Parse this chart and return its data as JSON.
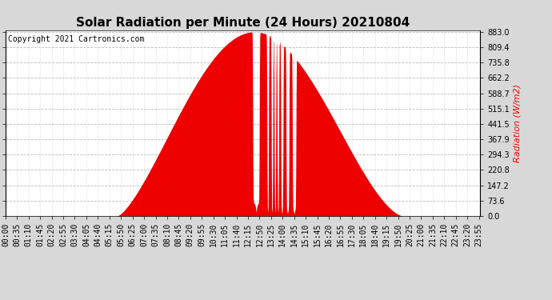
{
  "title": "Solar Radiation per Minute (24 Hours) 20210804",
  "ylabel": "Radiation (W/m2)",
  "copyright": "Copyright 2021 Cartronics.com",
  "ymax": 883.0,
  "yticks": [
    0.0,
    73.6,
    147.2,
    220.8,
    294.3,
    367.9,
    441.5,
    515.1,
    588.7,
    662.2,
    735.8,
    809.4,
    883.0
  ],
  "fill_color": "#ee0000",
  "background_color": "#d8d8d8",
  "plot_bg_color": "#ffffff",
  "grid_color": "#aaaaaa",
  "dashed_line_color": "#cc0000",
  "title_fontsize": 11,
  "axis_fontsize": 7,
  "ylabel_fontsize": 8,
  "copyright_fontsize": 7
}
